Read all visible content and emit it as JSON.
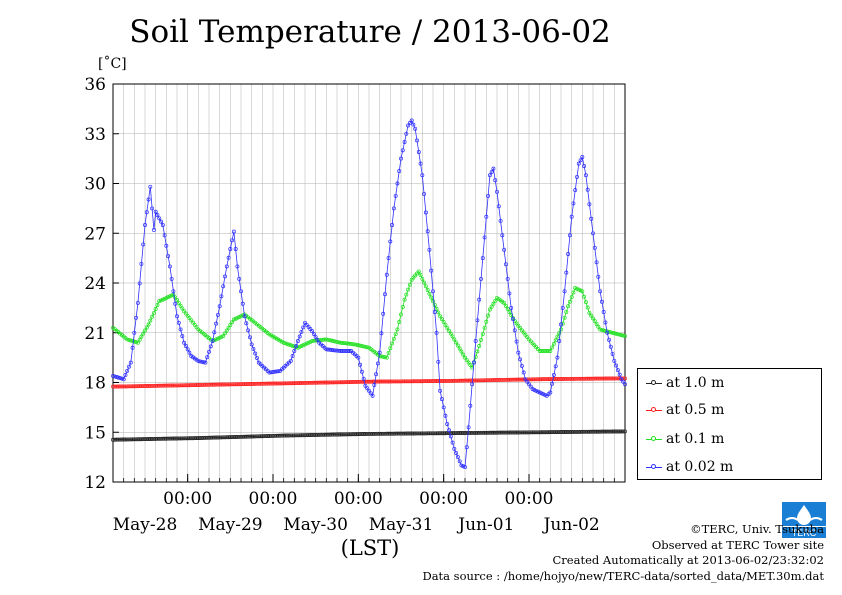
{
  "chart_data": {
    "type": "line",
    "title": "Soil Temperature / 2013-06-02",
    "ylabel": "[˚C]",
    "xlabel": "(LST)",
    "ylim": [
      12,
      36
    ],
    "yticks": [
      12,
      15,
      18,
      21,
      24,
      27,
      30,
      33,
      36
    ],
    "xlim": [
      0,
      144
    ],
    "time_tick_label": "00:00",
    "time_ticks": [
      21,
      45,
      69,
      93,
      117
    ],
    "date_labels": [
      {
        "x": 9,
        "label": "May-28"
      },
      {
        "x": 33,
        "label": "May-29"
      },
      {
        "x": 57,
        "label": "May-30"
      },
      {
        "x": 81,
        "label": "May-31"
      },
      {
        "x": 105,
        "label": "Jun-01"
      },
      {
        "x": 129,
        "label": "Jun-02"
      }
    ],
    "grid": true,
    "legend_position": "right",
    "series": [
      {
        "name": "at 1.0 m",
        "color": "#222222",
        "points": [
          [
            0,
            14.55
          ],
          [
            24,
            14.65
          ],
          [
            48,
            14.8
          ],
          [
            72,
            14.9
          ],
          [
            96,
            14.95
          ],
          [
            120,
            15.0
          ],
          [
            144,
            15.05
          ]
        ]
      },
      {
        "name": "at 0.5 m",
        "color": "#ff2020",
        "points": [
          [
            0,
            17.75
          ],
          [
            24,
            17.85
          ],
          [
            48,
            17.95
          ],
          [
            72,
            18.05
          ],
          [
            96,
            18.1
          ],
          [
            120,
            18.2
          ],
          [
            144,
            18.25
          ]
        ]
      },
      {
        "name": "at 0.1 m",
        "color": "#22e022",
        "points": [
          [
            0,
            21.3
          ],
          [
            4,
            20.6
          ],
          [
            7,
            20.4
          ],
          [
            10,
            21.5
          ],
          [
            13,
            22.9
          ],
          [
            17,
            23.3
          ],
          [
            20,
            22.3
          ],
          [
            24,
            21.2
          ],
          [
            28,
            20.5
          ],
          [
            31,
            20.8
          ],
          [
            34,
            21.8
          ],
          [
            37,
            22.1
          ],
          [
            40,
            21.6
          ],
          [
            44,
            20.9
          ],
          [
            48,
            20.4
          ],
          [
            52,
            20.1
          ],
          [
            56,
            20.5
          ],
          [
            60,
            20.6
          ],
          [
            64,
            20.4
          ],
          [
            68,
            20.3
          ],
          [
            72,
            20.1
          ],
          [
            75,
            19.6
          ],
          [
            77,
            19.5
          ],
          [
            80,
            21.2
          ],
          [
            82,
            23.0
          ],
          [
            84,
            24.2
          ],
          [
            86,
            24.7
          ],
          [
            88,
            23.8
          ],
          [
            92,
            22.0
          ],
          [
            96,
            20.6
          ],
          [
            99,
            19.5
          ],
          [
            101,
            18.9
          ],
          [
            103,
            20.2
          ],
          [
            106,
            22.4
          ],
          [
            108,
            23.1
          ],
          [
            110,
            22.8
          ],
          [
            113,
            21.7
          ],
          [
            117,
            20.6
          ],
          [
            120,
            19.9
          ],
          [
            123,
            19.9
          ],
          [
            126,
            21.2
          ],
          [
            128,
            22.6
          ],
          [
            130,
            23.7
          ],
          [
            132,
            23.5
          ],
          [
            134,
            22.2
          ],
          [
            137,
            21.2
          ],
          [
            144,
            20.8
          ]
        ]
      },
      {
        "name": "at 0.02 m",
        "color": "#3030ff",
        "points": [
          [
            0,
            18.4
          ],
          [
            3,
            18.2
          ],
          [
            5,
            19.2
          ],
          [
            7,
            22.8
          ],
          [
            9,
            27.5
          ],
          [
            10.5,
            29.8
          ],
          [
            11.5,
            27.2
          ],
          [
            12,
            28.3
          ],
          [
            14,
            27.5
          ],
          [
            16,
            25.0
          ],
          [
            18,
            22.0
          ],
          [
            20,
            20.4
          ],
          [
            22,
            19.6
          ],
          [
            24,
            19.3
          ],
          [
            26,
            19.2
          ],
          [
            28,
            20.5
          ],
          [
            30,
            22.6
          ],
          [
            32,
            25.0
          ],
          [
            34,
            27.1
          ],
          [
            35,
            25.0
          ],
          [
            37,
            22.0
          ],
          [
            39,
            20.3
          ],
          [
            41,
            19.2
          ],
          [
            44,
            18.6
          ],
          [
            47,
            18.7
          ],
          [
            50,
            19.3
          ],
          [
            52,
            20.5
          ],
          [
            54,
            21.6
          ],
          [
            56,
            21.1
          ],
          [
            58,
            20.4
          ],
          [
            60,
            20.0
          ],
          [
            64,
            19.9
          ],
          [
            67,
            19.9
          ],
          [
            69,
            19.5
          ],
          [
            71,
            17.8
          ],
          [
            73,
            17.2
          ],
          [
            75,
            19.8
          ],
          [
            77,
            24.5
          ],
          [
            79,
            28.5
          ],
          [
            81,
            31.5
          ],
          [
            83,
            33.5
          ],
          [
            84,
            33.8
          ],
          [
            85,
            33.3
          ],
          [
            87,
            30.5
          ],
          [
            89,
            26.0
          ],
          [
            91,
            21.0
          ],
          [
            92,
            17.5
          ],
          [
            94,
            15.5
          ],
          [
            96,
            14.0
          ],
          [
            98,
            13.0
          ],
          [
            99,
            12.9
          ],
          [
            100,
            15.3
          ],
          [
            102,
            20.5
          ],
          [
            104,
            25.5
          ],
          [
            106,
            30.5
          ],
          [
            107,
            30.9
          ],
          [
            108,
            29.5
          ],
          [
            110,
            26.0
          ],
          [
            112,
            22.5
          ],
          [
            114,
            19.8
          ],
          [
            116,
            18.2
          ],
          [
            118,
            17.6
          ],
          [
            120,
            17.4
          ],
          [
            122,
            17.2
          ],
          [
            123,
            17.4
          ],
          [
            125,
            19.5
          ],
          [
            127,
            23.5
          ],
          [
            129,
            28.0
          ],
          [
            131,
            31.2
          ],
          [
            132,
            31.6
          ],
          [
            133,
            30.5
          ],
          [
            135,
            27.0
          ],
          [
            137,
            23.5
          ],
          [
            139,
            21.0
          ],
          [
            141,
            19.3
          ],
          [
            143,
            18.2
          ],
          [
            144,
            17.9
          ]
        ]
      }
    ]
  },
  "page": {
    "title": "Soil Temperature / 2013-06-02",
    "unit": "[˚C]",
    "xaxis_title": "(LST)"
  },
  "credits": {
    "copyright": "©TERC, Univ. Tsukuba",
    "observed": "Observed at TERC Tower site",
    "created": "Created Automatically at 2013-06-02/23:32:02",
    "source": "Data source : /home/hojyo/new/TERC-data/sorted_data/MET.30m.dat"
  },
  "logo": {
    "name": "terc-logo",
    "text": "TERC",
    "color": "#1a7fd4"
  }
}
